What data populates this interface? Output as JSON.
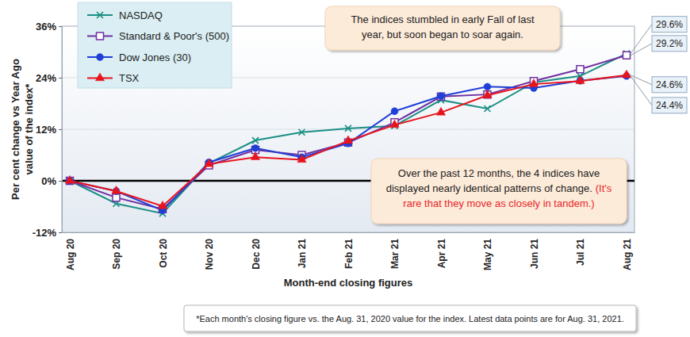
{
  "chart_data": {
    "type": "line",
    "categories": [
      "Aug 20",
      "Sep 20",
      "Oct 20",
      "Nov 20",
      "Dec 20",
      "Jan 21",
      "Feb 21",
      "Mar 21",
      "Apr 21",
      "May 21",
      "Jun 21",
      "Jul 21",
      "Aug 21"
    ],
    "series": [
      {
        "name": "NASDAQ",
        "color": "#1b8f84",
        "marker": "x",
        "line_style": "solid",
        "values": [
          0,
          -5.3,
          -7.6,
          4.1,
          9.4,
          11.3,
          12.2,
          12.8,
          18.8,
          16.8,
          22.9,
          24.4,
          29.6
        ],
        "value_labels": [
          null,
          null,
          null,
          null,
          null,
          null,
          null,
          null,
          null,
          null,
          null,
          null,
          "29.6%"
        ]
      },
      {
        "name": "Standard & Poor's (500)",
        "color": "#7030a0",
        "marker": "open-square",
        "line_style": "solid",
        "values": [
          0,
          -3.9,
          -6.6,
          3.6,
          7.2,
          6.0,
          8.9,
          13.6,
          19.6,
          20.1,
          23.2,
          26.0,
          29.2
        ],
        "value_labels": [
          null,
          null,
          null,
          null,
          null,
          null,
          null,
          null,
          null,
          null,
          null,
          null,
          "29.2%"
        ]
      },
      {
        "name": "Dow Jones (30)",
        "color": "#1f3fd6",
        "marker": "circle",
        "line_style": "solid",
        "values": [
          0,
          -2.4,
          -6.9,
          4.3,
          7.6,
          5.5,
          8.7,
          16.2,
          19.7,
          21.9,
          21.6,
          23.3,
          24.4
        ],
        "value_labels": [
          null,
          null,
          null,
          null,
          null,
          null,
          null,
          null,
          null,
          null,
          null,
          null,
          "24.4%"
        ]
      },
      {
        "name": "TSX",
        "color": "#e8141c",
        "marker": "triangle",
        "line_style": "solid",
        "values": [
          0,
          -2.4,
          -5.9,
          3.9,
          5.5,
          4.9,
          9.3,
          13.0,
          15.9,
          19.9,
          22.5,
          23.2,
          24.6
        ],
        "value_labels": [
          null,
          null,
          null,
          null,
          null,
          null,
          null,
          null,
          null,
          null,
          null,
          null,
          "24.6%"
        ]
      }
    ],
    "ylim": [
      -12,
      36
    ],
    "yticks": [
      {
        "value": -12,
        "label": "-12%"
      },
      {
        "value": 0,
        "label": "0%"
      },
      {
        "value": 12,
        "label": "12%"
      },
      {
        "value": 24,
        "label": "24%"
      },
      {
        "value": 36,
        "label": "36%"
      }
    ],
    "ylabel": [
      "Per cent change vs Year Ago",
      "value of the index*"
    ],
    "xlabel": "Month-end closing figures",
    "grid": true,
    "legend": "top-left",
    "annotations": [
      {
        "lines": [
          [
            {
              "text": "The indices stumbled in early Fall of last"
            }
          ],
          [
            {
              "text": "year, but soon began to soar again."
            }
          ]
        ]
      },
      {
        "lines": [
          [
            {
              "text": "Over the past 12 months, the 4 indices have"
            }
          ],
          [
            {
              "text": "displayed nearly identical patterns of change."
            },
            {
              "text": "(It's",
              "color": "#e8262a"
            }
          ],
          [
            {
              "text": "rare that they move as closely in tandem.)",
              "color": "#e8262a"
            }
          ]
        ]
      }
    ],
    "footnote": "*Each month's closing figure vs. the Aug. 31, 2020 value for the index. Latest data points are for Aug. 31, 2021."
  }
}
